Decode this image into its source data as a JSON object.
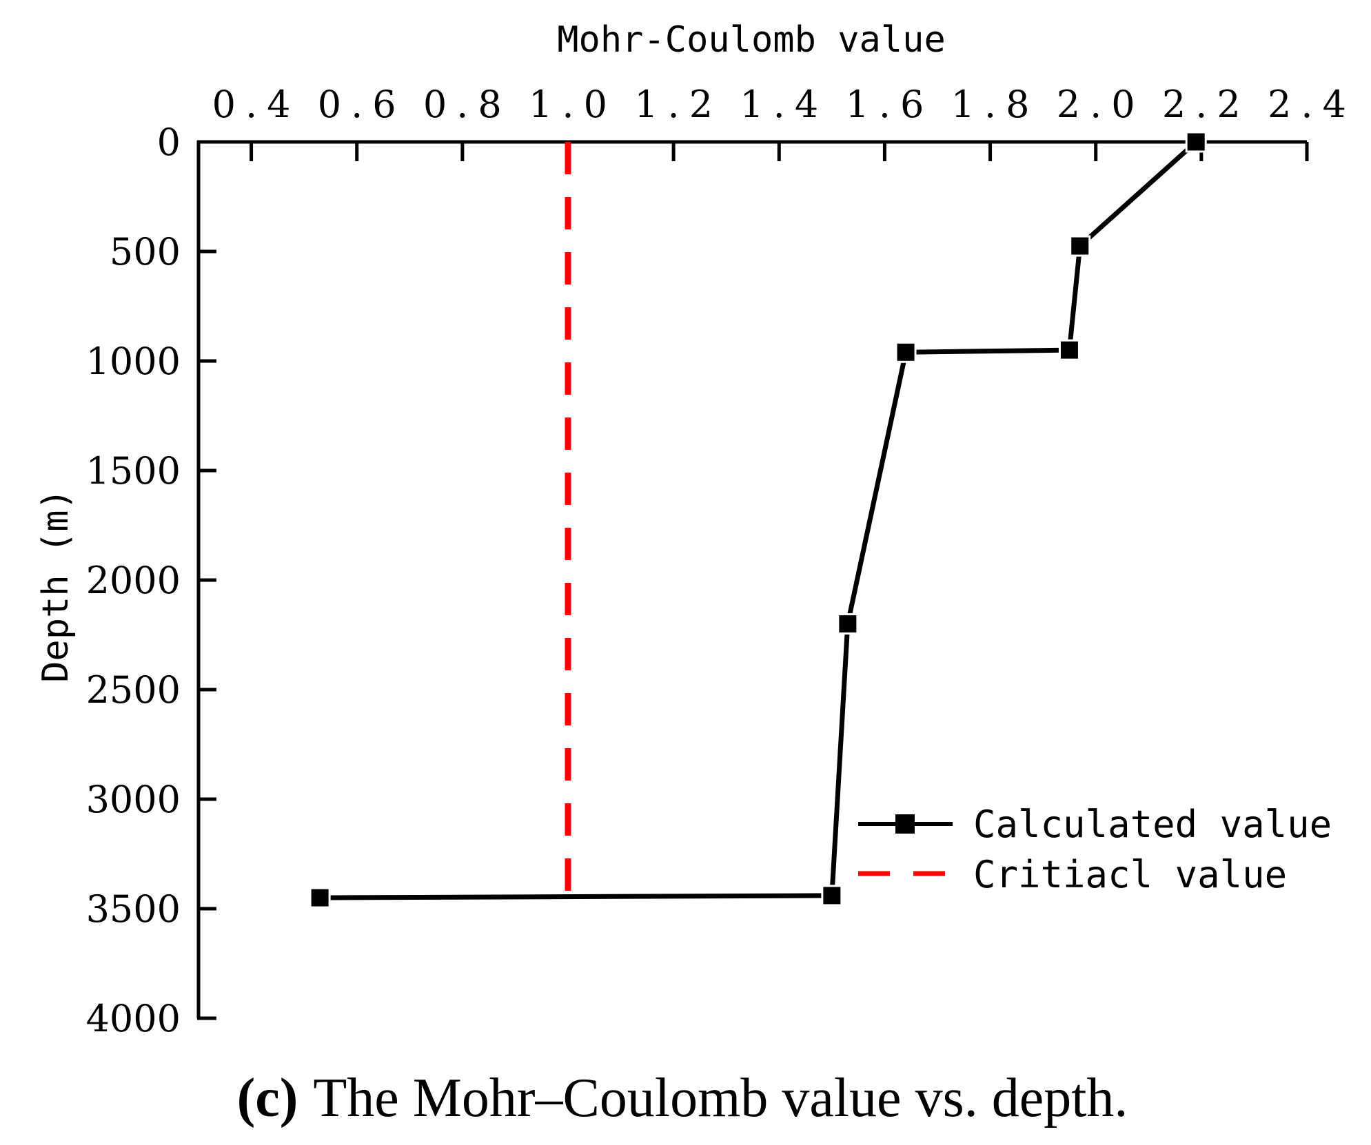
{
  "chart_data": {
    "type": "line",
    "title": "",
    "xlabel": "Mohr-Coulomb value",
    "ylabel": "Depth (m)",
    "xlim": [
      0.3,
      2.4
    ],
    "ylim": [
      0,
      4000
    ],
    "y_inverted": true,
    "x_axis_position": "top",
    "x_ticks": [
      0.4,
      0.6,
      0.8,
      1.0,
      1.2,
      1.4,
      1.6,
      1.8,
      2.0,
      2.2,
      2.4
    ],
    "x_tick_labels": [
      "0.4",
      "0.6",
      "0.8",
      "1.0",
      "1.2",
      "1.4",
      "1.6",
      "1.8",
      "2.0",
      "2.2",
      "2.4"
    ],
    "y_ticks": [
      0,
      500,
      1000,
      1500,
      2000,
      2500,
      3000,
      3500,
      4000
    ],
    "y_tick_labels": [
      "0",
      "500",
      "1000",
      "1500",
      "2000",
      "2500",
      "3000",
      "3500",
      "4000"
    ],
    "grid": false,
    "legend_position": "bottom-right",
    "series": [
      {
        "name": "Calculated value",
        "color": "#000000",
        "style": "solid",
        "marker": "square",
        "x": [
          2.19,
          1.97,
          1.95,
          1.64,
          1.53,
          1.5,
          0.53
        ],
        "y": [
          0,
          475,
          950,
          960,
          2200,
          3440,
          3450
        ]
      },
      {
        "name": "Critiacl value",
        "color": "#ff0000",
        "style": "dashed",
        "marker": "none",
        "x": [
          1.0,
          1.0
        ],
        "y": [
          0,
          3420
        ]
      }
    ]
  },
  "caption": {
    "label": "(c)",
    "text": "The Mohr–Coulomb value vs. depth."
  }
}
